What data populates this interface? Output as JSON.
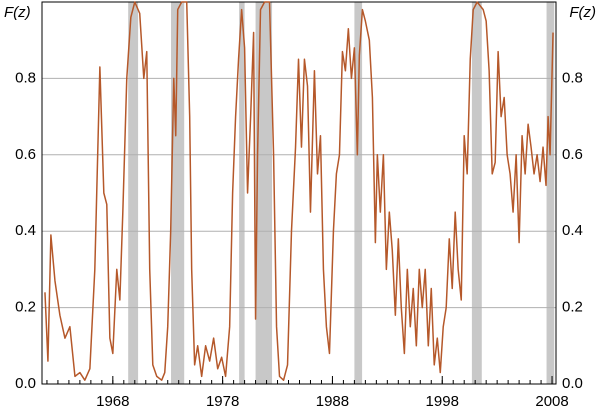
{
  "chart_data": {
    "type": "line",
    "ylabel": "F(z)",
    "y2label": "F(z)",
    "xlim": [
      1961.55,
      2008.36
    ],
    "xticks": [
      1968,
      1978,
      1988,
      1998,
      2008
    ],
    "xminorticks": [
      1962,
      1963,
      1964,
      1965,
      1966,
      1967,
      1968,
      1969,
      1970,
      1971,
      1972,
      1973,
      1974,
      1975,
      1976,
      1977,
      1978,
      1979,
      1980,
      1981,
      1982,
      1983,
      1984,
      1985,
      1986,
      1987,
      1988,
      1989,
      1990,
      1991,
      1992,
      1993,
      1994,
      1995,
      1996,
      1997,
      1998,
      1999,
      2000,
      2001,
      2002,
      2003,
      2004,
      2005,
      2006,
      2007,
      2008
    ],
    "ylim": [
      0,
      1
    ],
    "yticks": [
      {
        "value": 0,
        "label": "0.0"
      },
      0.2,
      0.4,
      0.6,
      0.8
    ],
    "y2lim": [
      0,
      1
    ],
    "y2ticks": [
      {
        "value": 0,
        "label": "0.0"
      },
      0.2,
      0.4,
      0.6,
      0.8
    ],
    "grid": true,
    "shaded_regions": [
      [
        1969.4,
        1970.3
      ],
      [
        1973.3,
        1974.5
      ],
      [
        1979.5,
        1980.0
      ],
      [
        1981.0,
        1982.5
      ],
      [
        1990.0,
        1990.7
      ],
      [
        2000.7,
        2001.6
      ],
      [
        2007.5,
        2008.2
      ]
    ],
    "shade_color": "#c8c8c8",
    "series": [
      {
        "color": "#b5582a",
        "x": [
          1961.82,
          1962.09,
          1962.36,
          1962.73,
          1963.18,
          1963.64,
          1964.09,
          1964.55,
          1965.0,
          1965.45,
          1965.91,
          1966.36,
          1966.82,
          1967.18,
          1967.45,
          1967.73,
          1968.0,
          1968.36,
          1968.64,
          1968.91,
          1969.27,
          1969.64,
          1970.0,
          1970.45,
          1970.82,
          1971.09,
          1971.36,
          1971.64,
          1972.0,
          1972.45,
          1972.73,
          1973.0,
          1973.27,
          1973.55,
          1973.73,
          1973.91,
          1974.27,
          1974.73,
          1975.0,
          1975.18,
          1975.45,
          1975.73,
          1976.09,
          1976.45,
          1976.82,
          1977.18,
          1977.55,
          1977.91,
          1978.27,
          1978.64,
          1978.91,
          1979.18,
          1979.45,
          1979.73,
          1980.0,
          1980.27,
          1980.55,
          1980.82,
          1981.0,
          1981.18,
          1981.45,
          1981.82,
          1982.27,
          1982.64,
          1982.91,
          1983.18,
          1983.55,
          1983.91,
          1984.27,
          1984.64,
          1984.91,
          1985.18,
          1985.45,
          1985.73,
          1986.0,
          1986.36,
          1986.64,
          1986.91,
          1987.18,
          1987.45,
          1987.73,
          1988.09,
          1988.36,
          1988.64,
          1988.91,
          1989.18,
          1989.45,
          1989.73,
          1990.0,
          1990.27,
          1990.45,
          1990.73,
          1991.0,
          1991.36,
          1991.64,
          1991.91,
          1992.09,
          1992.36,
          1992.64,
          1992.91,
          1993.18,
          1993.45,
          1993.73,
          1994.0,
          1994.27,
          1994.55,
          1994.82,
          1995.09,
          1995.36,
          1995.64,
          1995.91,
          1996.18,
          1996.45,
          1996.73,
          1997.0,
          1997.27,
          1997.55,
          1997.82,
          1998.09,
          1998.36,
          1998.64,
          1998.91,
          1999.18,
          1999.45,
          1999.73,
          2000.0,
          2000.27,
          2000.55,
          2000.82,
          2001.18,
          2001.73,
          2002.0,
          2002.27,
          2002.55,
          2002.82,
          2003.09,
          2003.36,
          2003.64,
          2003.91,
          2004.18,
          2004.45,
          2004.73,
          2005.0,
          2005.27,
          2005.55,
          2005.82,
          2006.09,
          2006.36,
          2006.64,
          2006.91,
          2007.18,
          2007.45,
          2007.64,
          2007.82,
          2008.09
        ],
        "values": [
          0.24,
          0.06,
          0.39,
          0.27,
          0.18,
          0.12,
          0.15,
          0.02,
          0.03,
          0.01,
          0.04,
          0.3,
          0.83,
          0.5,
          0.47,
          0.12,
          0.08,
          0.3,
          0.22,
          0.45,
          0.8,
          0.96,
          1.0,
          0.97,
          0.8,
          0.87,
          0.3,
          0.05,
          0.02,
          0.01,
          0.03,
          0.15,
          0.4,
          0.8,
          0.65,
          0.98,
          1.0,
          1.0,
          0.7,
          0.3,
          0.05,
          0.1,
          0.02,
          0.1,
          0.06,
          0.12,
          0.04,
          0.07,
          0.02,
          0.15,
          0.5,
          0.7,
          0.85,
          0.98,
          0.88,
          0.5,
          0.7,
          0.92,
          0.17,
          0.6,
          0.98,
          1.0,
          1.0,
          0.6,
          0.15,
          0.02,
          0.01,
          0.05,
          0.4,
          0.62,
          0.85,
          0.62,
          0.85,
          0.78,
          0.45,
          0.82,
          0.55,
          0.65,
          0.3,
          0.15,
          0.08,
          0.4,
          0.55,
          0.6,
          0.87,
          0.82,
          0.93,
          0.8,
          0.88,
          0.6,
          0.86,
          0.98,
          0.95,
          0.9,
          0.75,
          0.37,
          0.6,
          0.45,
          0.6,
          0.3,
          0.45,
          0.35,
          0.18,
          0.38,
          0.2,
          0.08,
          0.3,
          0.15,
          0.25,
          0.1,
          0.3,
          0.2,
          0.3,
          0.1,
          0.25,
          0.05,
          0.12,
          0.03,
          0.15,
          0.2,
          0.38,
          0.25,
          0.45,
          0.3,
          0.22,
          0.65,
          0.55,
          0.85,
          0.98,
          1.0,
          0.98,
          0.95,
          0.82,
          0.55,
          0.58,
          0.87,
          0.7,
          0.75,
          0.6,
          0.55,
          0.45,
          0.6,
          0.37,
          0.65,
          0.55,
          0.68,
          0.62,
          0.55,
          0.6,
          0.53,
          0.62,
          0.52,
          0.7,
          0.6,
          0.92
        ]
      }
    ]
  }
}
